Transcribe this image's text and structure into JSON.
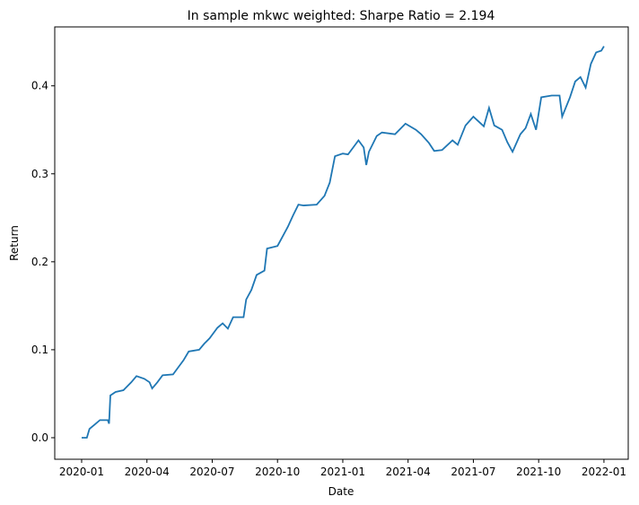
{
  "chart_data": {
    "type": "line",
    "title": "In sample mkwc weighted: Sharpe Ratio = 2.194",
    "x_label": "Date",
    "y_label": "Return",
    "xlim": [
      2019.897,
      2022.093
    ],
    "ylim": [
      -0.0245,
      0.467
    ],
    "xticks": [
      {
        "value": 2020.0,
        "label": "2020-01"
      },
      {
        "value": 2020.25,
        "label": "2020-04"
      },
      {
        "value": 2020.5,
        "label": "2020-07"
      },
      {
        "value": 2020.75,
        "label": "2020-10"
      },
      {
        "value": 2021.0,
        "label": "2021-01"
      },
      {
        "value": 2021.25,
        "label": "2021-04"
      },
      {
        "value": 2021.5,
        "label": "2021-07"
      },
      {
        "value": 2021.75,
        "label": "2021-10"
      },
      {
        "value": 2022.0,
        "label": "2022-01"
      }
    ],
    "yticks": [
      {
        "value": 0,
        "label": "0.0"
      },
      0.1,
      0.2,
      0.3,
      0.4
    ],
    "series": [
      {
        "color": "#1f77b4",
        "x": [
          2020.0,
          2020.02,
          2020.03,
          2020.05,
          2020.07,
          2020.09,
          2020.1,
          2020.105,
          2020.11,
          2020.13,
          2020.16,
          2020.19,
          2020.21,
          2020.24,
          2020.26,
          2020.27,
          2020.29,
          2020.31,
          2020.35,
          2020.37,
          2020.39,
          2020.41,
          2020.45,
          2020.47,
          2020.49,
          2020.52,
          2020.54,
          2020.56,
          2020.58,
          2020.62,
          2020.63,
          2020.65,
          2020.67,
          2020.7,
          2020.71,
          2020.75,
          2020.77,
          2020.79,
          2020.81,
          2020.83,
          2020.85,
          2020.9,
          2020.93,
          2020.95,
          2020.97,
          2021.0,
          2021.02,
          2021.04,
          2021.06,
          2021.08,
          2021.09,
          2021.1,
          2021.13,
          2021.15,
          2021.2,
          2021.24,
          2021.28,
          2021.3,
          2021.33,
          2021.35,
          2021.38,
          2021.42,
          2021.44,
          2021.47,
          2021.5,
          2021.54,
          2021.56,
          2021.58,
          2021.61,
          2021.63,
          2021.65,
          2021.68,
          2021.7,
          2021.72,
          2021.74,
          2021.76,
          2021.8,
          2021.83,
          2021.84,
          2021.87,
          2021.89,
          2021.91,
          2021.93,
          2021.95,
          2021.97,
          2021.99,
          2022.0
        ],
        "values": [
          0.0,
          0.0,
          0.01,
          0.015,
          0.02,
          0.02,
          0.02,
          0.016,
          0.048,
          0.052,
          0.054,
          0.063,
          0.07,
          0.067,
          0.063,
          0.056,
          0.063,
          0.071,
          0.072,
          0.08,
          0.088,
          0.098,
          0.1,
          0.107,
          0.113,
          0.125,
          0.13,
          0.124,
          0.137,
          0.137,
          0.157,
          0.168,
          0.185,
          0.19,
          0.215,
          0.218,
          0.229,
          0.24,
          0.253,
          0.265,
          0.264,
          0.265,
          0.275,
          0.29,
          0.32,
          0.323,
          0.322,
          0.33,
          0.338,
          0.33,
          0.31,
          0.325,
          0.343,
          0.347,
          0.345,
          0.357,
          0.35,
          0.345,
          0.335,
          0.326,
          0.327,
          0.338,
          0.333,
          0.355,
          0.365,
          0.354,
          0.375,
          0.355,
          0.35,
          0.336,
          0.325,
          0.345,
          0.352,
          0.368,
          0.35,
          0.387,
          0.389,
          0.389,
          0.365,
          0.387,
          0.405,
          0.41,
          0.398,
          0.425,
          0.438,
          0.44,
          0.445
        ]
      }
    ]
  }
}
